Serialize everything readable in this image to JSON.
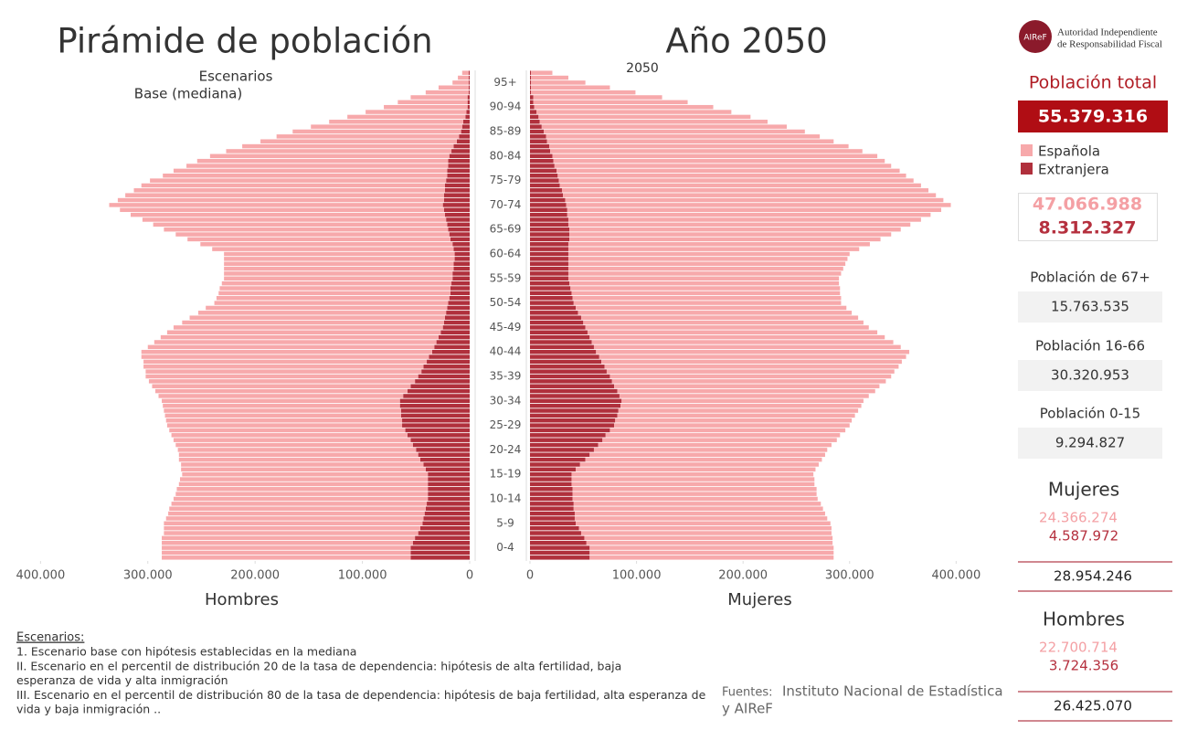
{
  "header": {
    "title": "Pirámide de población",
    "year_title": "Año 2050",
    "year": "2050",
    "scenario_label": "Escenarios",
    "scenario": "Base (mediana)"
  },
  "chart_data": [
    {
      "type": "bar",
      "xlabel": "Hombres",
      "x_reversed": true,
      "stacked": true,
      "categories": [
        null,
        null,
        "0-4",
        null,
        null,
        null,
        null,
        "5-9",
        null,
        null,
        null,
        null,
        "10-14",
        null,
        null,
        null,
        null,
        "15-19",
        null,
        null,
        null,
        null,
        "20-24",
        null,
        null,
        null,
        null,
        "25-29",
        null,
        null,
        null,
        null,
        "30-34",
        null,
        null,
        null,
        null,
        "35-39",
        null,
        null,
        null,
        null,
        "40-44",
        null,
        null,
        null,
        null,
        "45-49",
        null,
        null,
        null,
        null,
        "50-54",
        null,
        null,
        null,
        null,
        "55-59",
        null,
        null,
        null,
        null,
        "60-64",
        null,
        null,
        null,
        null,
        "65-69",
        null,
        null,
        null,
        null,
        "70-74",
        null,
        null,
        null,
        null,
        "75-79",
        null,
        null,
        null,
        null,
        "80-84",
        null,
        null,
        null,
        null,
        "85-89",
        null,
        null,
        null,
        null,
        "90-94",
        null,
        null,
        null,
        null,
        "95+",
        null,
        null
      ],
      "xlim": [
        0,
        425000
      ],
      "xticks": [
        {
          "value": 400000,
          "label": "400.000"
        },
        {
          "value": 300000,
          "label": "300.000"
        },
        {
          "value": 200000,
          "label": "200.000"
        },
        {
          "value": 100000,
          "label": "100.000"
        },
        0
      ],
      "series": [
        {
          "name": "Española",
          "color": "#f7a9ab",
          "values": [
            232000,
            232000,
            232000,
            234000,
            236000,
            237000,
            239000,
            241000,
            240000,
            239000,
            239000,
            238000,
            237000,
            235000,
            234000,
            232000,
            231000,
            229000,
            228000,
            226000,
            225000,
            223000,
            222000,
            221000,
            221000,
            220000,
            220000,
            219000,
            220000,
            220000,
            221000,
            221000,
            222000,
            228000,
            235000,
            241000,
            248000,
            254000,
            257000,
            261000,
            264000,
            268000,
            271000,
            267000,
            263000,
            259000,
            255000,
            251000,
            244000,
            238000,
            231000,
            225000,
            218000,
            217000,
            216000,
            215000,
            214000,
            213000,
            213000,
            214000,
            214000,
            215000,
            215000,
            225000,
            235000,
            245000,
            255000,
            265000,
            274000,
            283000,
            293000,
            302000,
            311000,
            304000,
            297000,
            290000,
            283000,
            276000,
            265000,
            255000,
            244000,
            234000,
            223000,
            210000,
            197000,
            183000,
            170000,
            157000,
            141000,
            125000,
            110000,
            94000,
            78000,
            65000,
            53000,
            40000,
            28000,
            15000,
            10000,
            6000
          ]
        },
        {
          "name": "Extranjera",
          "color": "#b0303c",
          "values": [
            55000,
            55000,
            55000,
            53000,
            51000,
            48000,
            46000,
            44000,
            43000,
            42000,
            41000,
            40000,
            39000,
            39000,
            39000,
            39000,
            39000,
            39000,
            41000,
            43000,
            46000,
            48000,
            50000,
            53000,
            55000,
            58000,
            60000,
            63000,
            63000,
            64000,
            64000,
            65000,
            65000,
            62000,
            58000,
            55000,
            51000,
            48000,
            45000,
            43000,
            40000,
            38000,
            35000,
            33000,
            31000,
            29000,
            27000,
            25000,
            24000,
            23000,
            22000,
            21000,
            20000,
            19000,
            18000,
            18000,
            17000,
            16000,
            16000,
            15000,
            15000,
            14000,
            14000,
            15000,
            16000,
            18000,
            19000,
            20000,
            21000,
            22000,
            23000,
            24000,
            25000,
            24000,
            24000,
            23000,
            23000,
            22000,
            21000,
            21000,
            20000,
            20000,
            19000,
            17000,
            15000,
            12000,
            10000,
            8000,
            7000,
            6000,
            4000,
            3000,
            2000,
            2000,
            2000,
            1000,
            1000,
            1000,
            1000,
            1000
          ]
        }
      ]
    },
    {
      "type": "bar",
      "xlabel": "Mujeres",
      "x_reversed": false,
      "stacked": true,
      "xlim": [
        0,
        440000
      ],
      "xticks": [
        0,
        {
          "value": 100000,
          "label": "100.000"
        },
        {
          "value": 200000,
          "label": "200.000"
        },
        {
          "value": 300000,
          "label": "300.000"
        },
        {
          "value": 400000,
          "label": "400.000"
        }
      ],
      "series": [
        {
          "name": "Española",
          "color": "#f7a9ab",
          "values": [
            229000,
            229000,
            229000,
            231000,
            233000,
            235000,
            237000,
            239000,
            237000,
            235000,
            234000,
            232000,
            230000,
            229000,
            229000,
            228000,
            228000,
            227000,
            225000,
            224000,
            222000,
            221000,
            219000,
            219000,
            220000,
            220000,
            221000,
            221000,
            222000,
            223000,
            225000,
            226000,
            227000,
            234000,
            242000,
            249000,
            257000,
            264000,
            270000,
            276000,
            282000,
            288000,
            294000,
            288000,
            283000,
            277000,
            272000,
            266000,
            263000,
            260000,
            257000,
            254000,
            251000,
            252000,
            252000,
            253000,
            253000,
            254000,
            256000,
            258000,
            260000,
            262000,
            264000,
            273000,
            283000,
            292000,
            302000,
            311000,
            321000,
            331000,
            341000,
            351000,
            361000,
            355000,
            350000,
            344000,
            339000,
            333000,
            327000,
            322000,
            316000,
            311000,
            305000,
            293000,
            281000,
            269000,
            257000,
            245000,
            230000,
            214000,
            199000,
            183000,
            168000,
            145000,
            121000,
            98000,
            74000,
            51000,
            35000,
            20000
          ]
        },
        {
          "name": "Extranjera",
          "color": "#b0303c",
          "values": [
            56000,
            56000,
            56000,
            53000,
            51000,
            48000,
            46000,
            43000,
            42000,
            42000,
            41000,
            41000,
            40000,
            40000,
            40000,
            39000,
            39000,
            39000,
            43000,
            47000,
            52000,
            56000,
            60000,
            64000,
            68000,
            71000,
            75000,
            79000,
            80000,
            82000,
            83000,
            85000,
            86000,
            84000,
            82000,
            79000,
            77000,
            75000,
            72000,
            70000,
            67000,
            65000,
            62000,
            60000,
            58000,
            56000,
            54000,
            52000,
            50000,
            48000,
            45000,
            43000,
            41000,
            40000,
            39000,
            38000,
            37000,
            36000,
            36000,
            36000,
            36000,
            36000,
            36000,
            36000,
            36000,
            37000,
            37000,
            37000,
            36000,
            36000,
            35000,
            35000,
            34000,
            33000,
            31000,
            30000,
            28000,
            27000,
            26000,
            25000,
            23000,
            22000,
            21000,
            19000,
            18000,
            16000,
            15000,
            13000,
            11000,
            9000,
            8000,
            6000,
            4000,
            3000,
            3000,
            1000,
            1000,
            1000,
            1000,
            1000
          ]
        }
      ]
    }
  ],
  "panel": {
    "logo": "AIReF",
    "org_line1": "Autoridad Independiente",
    "org_line2": "de Responsabilidad Fiscal",
    "total_label": "Población total",
    "total": "55.379.316",
    "espanola_total": "47.066.988",
    "extranjera_total": "8.312.327",
    "age_groups": [
      {
        "label": "Población de 67+",
        "value": "15.763.535"
      },
      {
        "label": "Población 16-66",
        "value": "30.320.953"
      },
      {
        "label": "Población 0-15",
        "value": "9.294.827"
      }
    ],
    "sexes": [
      {
        "label": "Mujeres",
        "espanola": "24.366.274",
        "extranjera": "4.587.972",
        "total": "28.954.246"
      },
      {
        "label": "Hombres",
        "espanola": "22.700.714",
        "extranjera": "3.724.356",
        "total": "26.425.070"
      }
    ]
  },
  "notes": {
    "heading": "Escenarios:",
    "lines": [
      "1. Escenario base con hipótesis establecidas en la mediana",
      "II. Escenario en el percentil de distribución 20 de la tasa de dependencia: hipótesis de alta fertilidad, baja",
      "esperanza de vida y alta inmigración",
      "III. Escenario en el percentil de distribución 80 de la tasa de dependencia: hipótesis de baja fertilidad, alta esperanza de",
      "vida y baja inmigración .."
    ],
    "sources_label": "Fuentes:",
    "sources_line1": "Instituto Nacional de Estadística",
    "sources_line2": "y AIReF"
  }
}
